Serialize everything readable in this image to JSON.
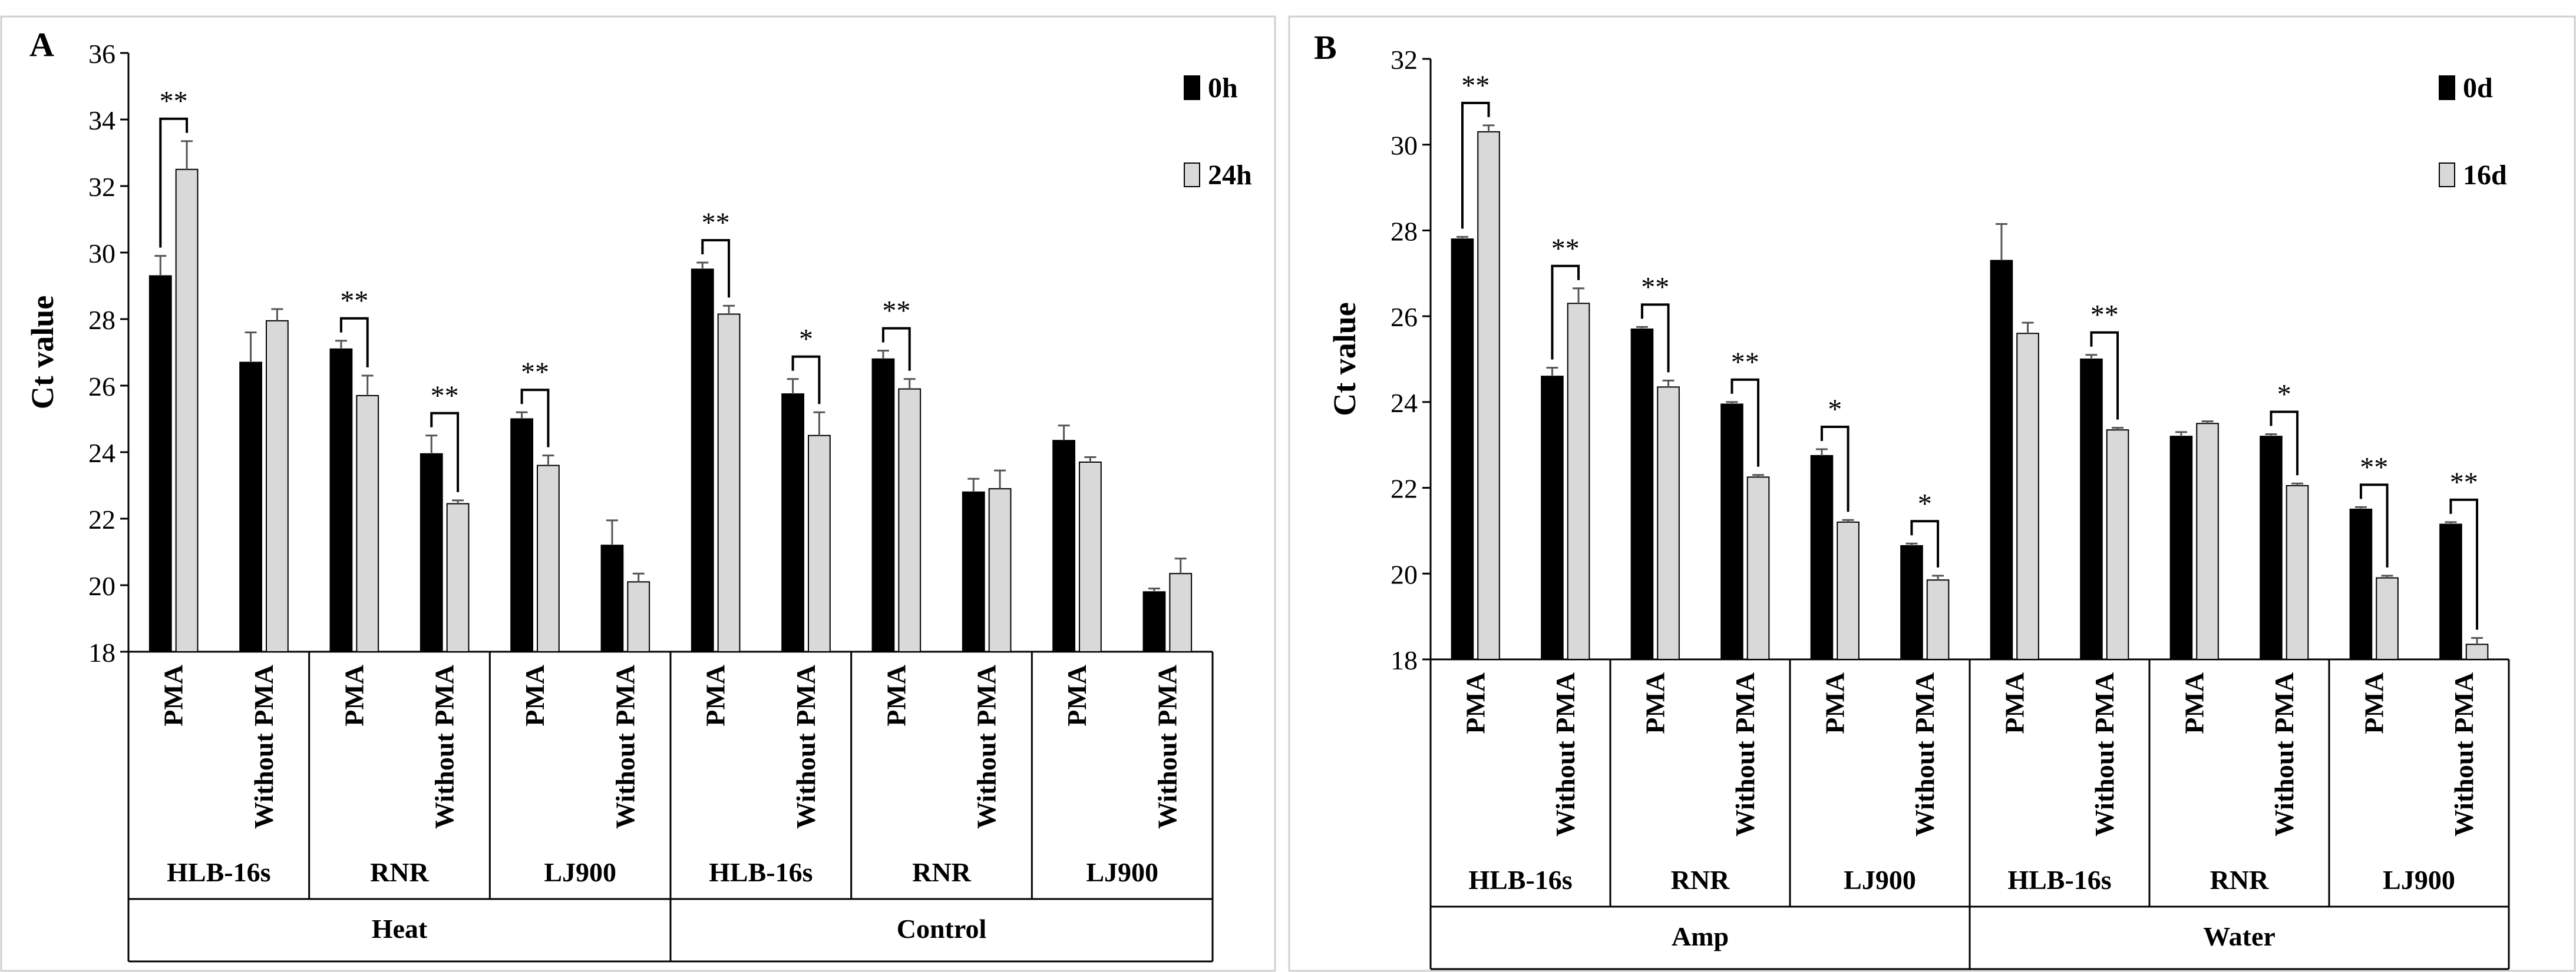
{
  "chart_data": [
    {
      "panel": "A",
      "type": "bar",
      "ylabel": "Ct value",
      "ylim": [
        18,
        36
      ],
      "yticks": [
        18,
        20,
        22,
        24,
        26,
        28,
        30,
        32,
        34,
        36
      ],
      "legend": [
        "0h",
        "24h"
      ],
      "legend_position": "top-right",
      "series_colors": [
        "#000000",
        "#d9d9d9"
      ],
      "category_labels": [
        "PMA",
        "Without PMA",
        "PMA",
        "Without PMA",
        "PMA",
        "Without PMA",
        "PMA",
        "Without PMA",
        "PMA",
        "Without PMA",
        "PMA",
        "Without PMA"
      ],
      "gene_groups": [
        "HLB-16s",
        "RNR",
        "LJ900",
        "HLB-16s",
        "RNR",
        "LJ900"
      ],
      "treatment_groups": [
        "Heat",
        "Control"
      ],
      "series": [
        {
          "name": "0h",
          "values": [
            29.3,
            26.7,
            27.1,
            23.95,
            25.0,
            21.2,
            29.5,
            25.75,
            26.8,
            22.8,
            24.35,
            19.8
          ],
          "errors": [
            0.6,
            0.9,
            0.25,
            0.55,
            0.2,
            0.75,
            0.2,
            0.45,
            0.25,
            0.4,
            0.45,
            0.1
          ]
        },
        {
          "name": "24h",
          "values": [
            32.5,
            27.95,
            25.7,
            22.45,
            23.6,
            20.1,
            28.15,
            24.5,
            25.9,
            22.9,
            23.7,
            20.35
          ],
          "errors": [
            0.85,
            0.35,
            0.6,
            0.1,
            0.3,
            0.25,
            0.25,
            0.7,
            0.3,
            0.55,
            0.15,
            0.45
          ]
        }
      ],
      "significance": [
        "**",
        "",
        "**",
        "**",
        "**",
        "",
        "**",
        "*",
        "**",
        "",
        "",
        ""
      ]
    },
    {
      "panel": "B",
      "type": "bar",
      "ylabel": "Ct value",
      "ylim": [
        18,
        32
      ],
      "yticks": [
        18,
        20,
        22,
        24,
        26,
        28,
        30,
        32
      ],
      "legend": [
        "0d",
        "16d"
      ],
      "legend_position": "top-right",
      "series_colors": [
        "#000000",
        "#d9d9d9"
      ],
      "category_labels": [
        "PMA",
        "Without PMA",
        "PMA",
        "Without PMA",
        "PMA",
        "Without PMA",
        "PMA",
        "Without PMA",
        "PMA",
        "Without PMA",
        "PMA",
        "Without PMA"
      ],
      "gene_groups": [
        "HLB-16s",
        "RNR",
        "LJ900",
        "HLB-16s",
        "RNR",
        "LJ900"
      ],
      "treatment_groups": [
        "Amp",
        "Water"
      ],
      "series": [
        {
          "name": "0d",
          "values": [
            27.8,
            24.6,
            25.7,
            23.95,
            22.75,
            20.65,
            27.3,
            25.0,
            23.2,
            23.2,
            21.5,
            21.15
          ],
          "errors": [
            0.05,
            0.2,
            0.05,
            0.05,
            0.15,
            0.05,
            0.85,
            0.1,
            0.1,
            0.05,
            0.05,
            0.05
          ]
        },
        {
          "name": "16d",
          "values": [
            30.3,
            26.3,
            24.35,
            22.25,
            21.2,
            19.85,
            25.6,
            23.35,
            23.5,
            22.05,
            19.9,
            18.35
          ],
          "errors": [
            0.15,
            0.35,
            0.15,
            0.05,
            0.05,
            0.1,
            0.25,
            0.05,
            0.05,
            0.05,
            0.05,
            0.15
          ]
        }
      ],
      "significance": [
        "**",
        "**",
        "**",
        "**",
        "*",
        "*",
        "",
        "**",
        "",
        "*",
        "**",
        "**"
      ]
    }
  ]
}
